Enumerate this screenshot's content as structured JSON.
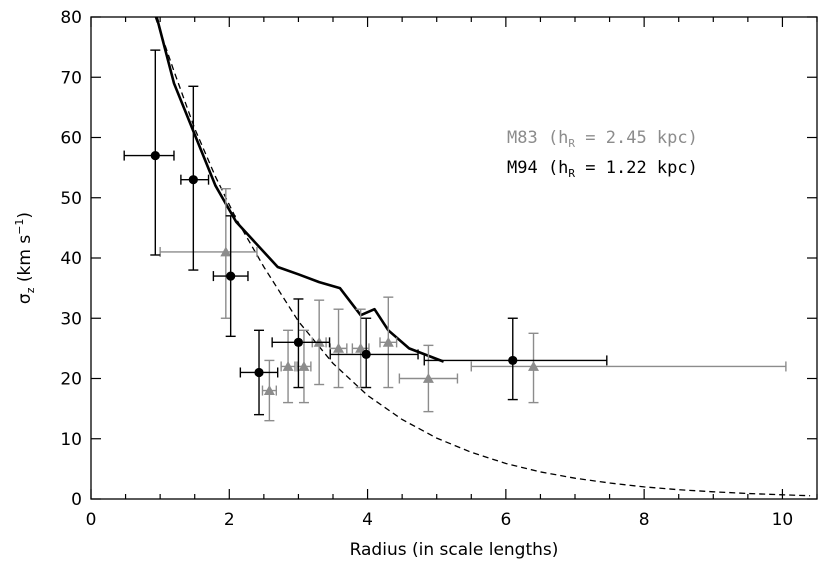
{
  "chart_data": {
    "type": "scatter",
    "title": "",
    "xlabel": "Radius (in scale lengths)",
    "ylabel": "σz (km s−1)",
    "ylabel_parts": {
      "symbol": "σ",
      "subscript": "z",
      "unit_open": " (km s",
      "superscript": "−1",
      "unit_close": ")"
    },
    "xlim": [
      0,
      10.5
    ],
    "ylim": [
      0,
      80
    ],
    "xticks_major": [
      0,
      2,
      4,
      6,
      8,
      10
    ],
    "xtick_labels": [
      "0",
      "2",
      "4",
      "6",
      "8",
      "10"
    ],
    "yticks_major": [
      0,
      10,
      20,
      30,
      40,
      50,
      60,
      70,
      80
    ],
    "ytick_labels": [
      "0",
      "10",
      "20",
      "30",
      "40",
      "50",
      "60",
      "70",
      "80"
    ],
    "x_minor_step": 0.5,
    "grid": false,
    "legend": [
      {
        "name": "M83",
        "prefix": "M83 (h",
        "sub": "R",
        "suffix": " = 2.45 kpc)",
        "color": "#8c8c8c"
      },
      {
        "name": "M94",
        "prefix": "M94 (h",
        "sub": "R",
        "suffix": " = 1.22 kpc)",
        "color": "#000000"
      }
    ],
    "legend_position": "upper-right",
    "series": [
      {
        "name": "M94",
        "marker": "circle",
        "color": "#000000",
        "points": [
          {
            "x": 0.93,
            "y": 57,
            "xerr": [
              0.45,
              0.27
            ],
            "yerr": [
              16.5,
              17.5
            ]
          },
          {
            "x": 1.48,
            "y": 53,
            "xerr": [
              0.18,
              0.22
            ],
            "yerr": [
              15,
              15.5
            ]
          },
          {
            "x": 2.02,
            "y": 37,
            "xerr": [
              0.25,
              0.25
            ],
            "yerr": [
              10,
              10
            ]
          },
          {
            "x": 2.43,
            "y": 21,
            "xerr": [
              0.27,
              0.27
            ],
            "yerr": [
              7,
              7
            ]
          },
          {
            "x": 3.0,
            "y": 26,
            "xerr": [
              0.38,
              0.45
            ],
            "yerr": [
              7.5,
              7.2
            ]
          },
          {
            "x": 3.98,
            "y": 24,
            "xerr": [
              0.52,
              0.75
            ],
            "yerr": [
              5.5,
              6
            ]
          },
          {
            "x": 6.1,
            "y": 23,
            "xerr": [
              1.28,
              1.36
            ],
            "yerr": [
              6.5,
              7
            ]
          }
        ]
      },
      {
        "name": "M83",
        "marker": "triangle",
        "color": "#8c8c8c",
        "points": [
          {
            "x": 1.95,
            "y": 41,
            "xerr": [
              0.95,
              0.45
            ],
            "yerr": [
              11,
              10.5
            ]
          },
          {
            "x": 2.58,
            "y": 18,
            "xerr": [
              0.1,
              0.1
            ],
            "yerr": [
              5,
              5
            ]
          },
          {
            "x": 2.85,
            "y": 22,
            "xerr": [
              0.1,
              0.1
            ],
            "yerr": [
              6,
              6
            ]
          },
          {
            "x": 3.08,
            "y": 22,
            "xerr": [
              0.1,
              0.1
            ],
            "yerr": [
              6,
              6
            ]
          },
          {
            "x": 3.3,
            "y": 26,
            "xerr": [
              0.1,
              0.1
            ],
            "yerr": [
              7,
              7
            ]
          },
          {
            "x": 3.58,
            "y": 25,
            "xerr": [
              0.12,
              0.12
            ],
            "yerr": [
              6.5,
              6.5
            ]
          },
          {
            "x": 3.9,
            "y": 25,
            "xerr": [
              0.12,
              0.12
            ],
            "yerr": [
              6.5,
              6.5
            ]
          },
          {
            "x": 4.3,
            "y": 26,
            "xerr": [
              0.12,
              0.12
            ],
            "yerr": [
              7.5,
              7.5
            ]
          },
          {
            "x": 4.88,
            "y": 20,
            "xerr": [
              0.42,
              0.42
            ],
            "yerr": [
              5.5,
              5.5
            ]
          },
          {
            "x": 6.4,
            "y": 22,
            "xerr": [
              0.9,
              3.65
            ],
            "yerr": [
              6,
              5.5
            ]
          }
        ]
      }
    ],
    "lines": [
      {
        "name": "model-solid",
        "style": "solid",
        "color": "#000000",
        "x": [
          0.95,
          1.2,
          1.5,
          1.8,
          2.1,
          2.7,
          3.0,
          3.3,
          3.6,
          3.9,
          4.1,
          4.3,
          4.6,
          5.1
        ],
        "y": [
          80,
          69,
          60.5,
          52,
          46,
          38.5,
          37.3,
          36,
          35,
          30.5,
          31.5,
          28,
          25,
          22.8
        ]
      },
      {
        "name": "model-dashed",
        "style": "dashed",
        "color": "#000000",
        "x": [
          0.93,
          1.2,
          1.5,
          1.8,
          2.1,
          2.5,
          3.0,
          3.5,
          4.0,
          4.5,
          5.0,
          5.5,
          6.0,
          6.5,
          7.0,
          7.5,
          8.0,
          8.5,
          9.0,
          9.5,
          10.0,
          10.4
        ],
        "y": [
          80,
          71,
          61.5,
          53.5,
          46.5,
          38.5,
          29.5,
          22.5,
          17.2,
          13.2,
          10.1,
          7.75,
          5.9,
          4.5,
          3.45,
          2.65,
          2.0,
          1.55,
          1.2,
          0.92,
          0.7,
          0.55
        ]
      }
    ]
  }
}
